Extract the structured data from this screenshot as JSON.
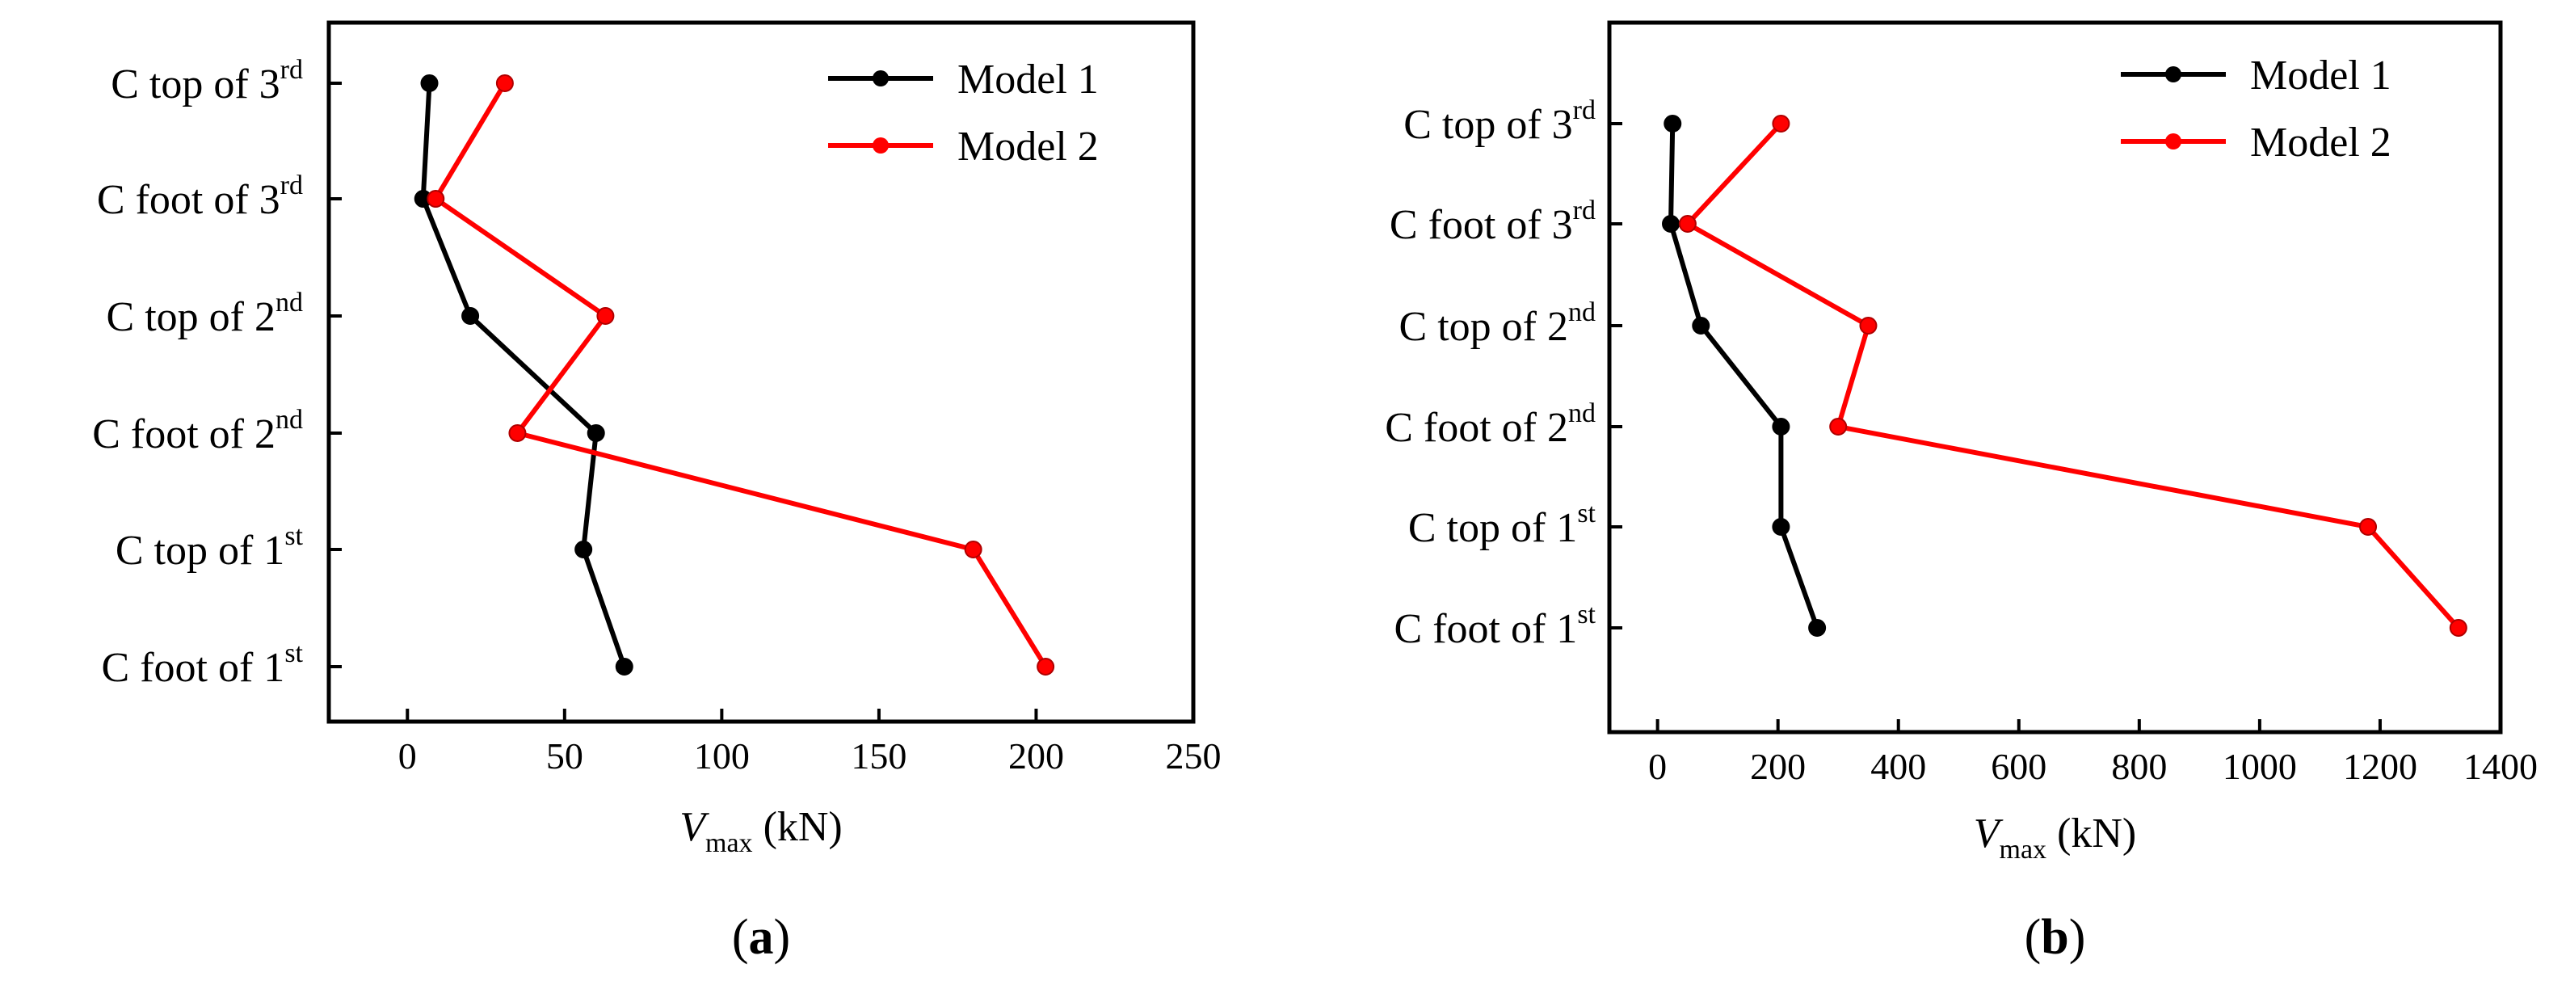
{
  "chart_data": [
    {
      "type": "line",
      "panel_label": "a",
      "title": "",
      "xlabel": {
        "main": "V",
        "sub": "max",
        "unit": "(kN)"
      },
      "ylabel": "",
      "xlim": [
        -25,
        250
      ],
      "xticks": [
        0,
        50,
        100,
        150,
        200,
        250
      ],
      "grid": false,
      "legend_position": "top-right",
      "categories": [
        {
          "base": "C top of 3",
          "sup": "rd"
        },
        {
          "base": "C foot of 3",
          "sup": "rd"
        },
        {
          "base": "C top of 2",
          "sup": "nd"
        },
        {
          "base": "C foot of 2",
          "sup": "nd"
        },
        {
          "base": "C top of 1",
          "sup": "st"
        },
        {
          "base": "C foot of 1",
          "sup": "st"
        }
      ],
      "series": [
        {
          "name": "Model 1",
          "color": "#000000",
          "values": [
            7,
            5,
            20,
            60,
            56,
            69
          ]
        },
        {
          "name": "Model 2",
          "color": "#ff0000",
          "values": [
            31,
            9,
            63,
            35,
            180,
            203
          ]
        }
      ]
    },
    {
      "type": "line",
      "panel_label": "b",
      "title": "",
      "xlabel": {
        "main": "V",
        "sub": "max",
        "unit": "(kN)"
      },
      "ylabel": "",
      "xlim": [
        -80,
        1400
      ],
      "xticks": [
        0,
        200,
        400,
        600,
        800,
        1000,
        1200,
        1400
      ],
      "grid": false,
      "legend_position": "top-right",
      "categories": [
        {
          "base": "C top of 3",
          "sup": "rd"
        },
        {
          "base": "C foot of 3",
          "sup": "rd"
        },
        {
          "base": "C top of 2",
          "sup": "nd"
        },
        {
          "base": "C foot of 2",
          "sup": "nd"
        },
        {
          "base": "C top of 1",
          "sup": "st"
        },
        {
          "base": "C foot of 1",
          "sup": "st"
        }
      ],
      "series": [
        {
          "name": "Model 1",
          "color": "#000000",
          "values": [
            25,
            22,
            72,
            205,
            205,
            265
          ]
        },
        {
          "name": "Model 2",
          "color": "#ff0000",
          "values": [
            205,
            50,
            350,
            300,
            1180,
            1330
          ]
        }
      ]
    }
  ]
}
